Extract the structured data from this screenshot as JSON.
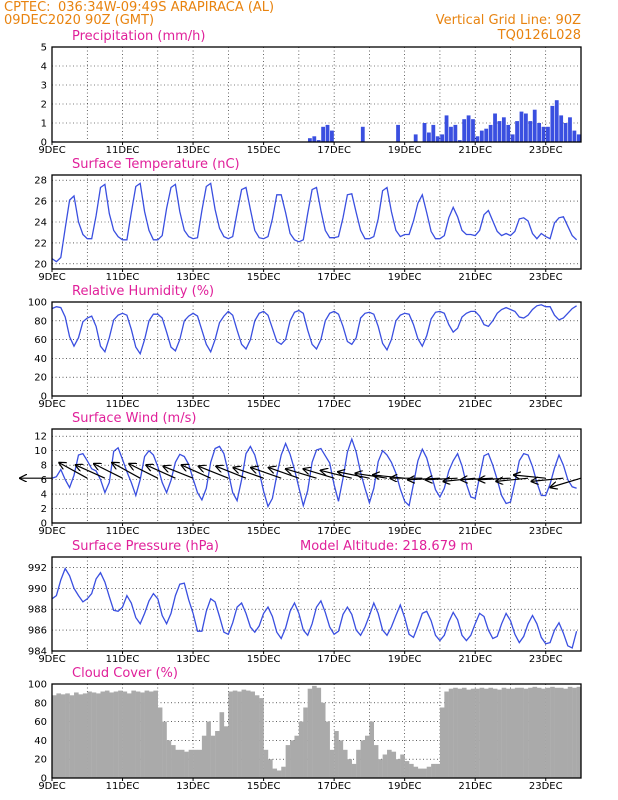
{
  "header": {
    "source": "CPTEC:",
    "location": "036:34W-09:49S  ARAPIRACA (AL)",
    "run": "09DEC2020 90Z (GMT)",
    "grid_note": "Vertical Grid Line: 90Z",
    "model": "TQ0126L028"
  },
  "colors": {
    "header": "#e8830f",
    "title": "#e0209a",
    "series": "#3a4fe0",
    "precip": "#3a4fe0",
    "cloud": "#aaaaaa",
    "wind_arrow": "#000000"
  },
  "chart_data": [
    {
      "id": "precip",
      "type": "bar",
      "title": "Precipitation  (mm/h)",
      "ylim": [
        0,
        5
      ],
      "yticks": [
        0,
        1,
        2,
        3,
        4,
        5
      ],
      "x_range": [
        "9DEC",
        "24DEC"
      ],
      "x_step_hours": 3,
      "values": [
        0.03,
        0.02,
        0.02,
        0.02,
        0.02,
        0.02,
        0.02,
        0.02,
        0.02,
        0.02,
        0.02,
        0.02,
        0.02,
        0.02,
        0.02,
        0.02,
        0.02,
        0.02,
        0.02,
        0.02,
        0.02,
        0.02,
        0.02,
        0.02,
        0.02,
        0.02,
        0.02,
        0.02,
        0.02,
        0.02,
        0.02,
        0.02,
        0.02,
        0.02,
        0.02,
        0.02,
        0.02,
        0.02,
        0.02,
        0.02,
        0.02,
        0.02,
        0.02,
        0.02,
        0.02,
        0.02,
        0.02,
        0.02,
        0.02,
        0.02,
        0.02,
        0.02,
        0.02,
        0.02,
        0.02,
        0.02,
        0.02,
        0.02,
        0.2,
        0.3,
        0.1,
        0.8,
        0.9,
        0.6,
        0.02,
        0.02,
        0.02,
        0.02,
        0.02,
        0.02,
        0.8,
        0.02,
        0.02,
        0.02,
        0.02,
        0.02,
        0.02,
        0.02,
        0.9,
        0.02,
        0.02,
        0.02,
        0.4,
        0.02,
        1.0,
        0.5,
        0.9,
        0.3,
        0.4,
        1.4,
        0.8,
        0.9,
        0.1,
        1.2,
        1.4,
        1.2,
        0.3,
        0.6,
        0.7,
        0.9,
        1.5,
        1.1,
        1.3,
        0.9,
        0.4,
        1.1,
        1.6,
        1.5,
        1.1,
        1.7,
        1.0,
        0.8,
        0.8,
        1.9,
        2.2,
        1.4,
        1.0,
        1.3,
        0.6,
        0.4
      ],
      "xticks": [
        "9DEC",
        "11DEC",
        "13DEC",
        "15DEC",
        "17DEC",
        "19DEC",
        "21DEC",
        "23DEC"
      ]
    },
    {
      "id": "temp",
      "type": "line",
      "title": "Surface Temperature (nC)",
      "ylim": [
        19.5,
        28.5
      ],
      "yticks": [
        20,
        22,
        24,
        26,
        28
      ],
      "x_step_hours": 3,
      "values": [
        20.5,
        20.2,
        20.6,
        23.4,
        26.1,
        26.5,
        24.0,
        22.8,
        22.4,
        22.4,
        24.6,
        27.3,
        27.6,
        24.8,
        23.2,
        22.6,
        22.3,
        22.3,
        24.9,
        27.4,
        27.7,
        25.0,
        23.2,
        22.3,
        22.3,
        22.7,
        25.3,
        27.3,
        27.6,
        25.0,
        23.2,
        22.6,
        22.4,
        22.5,
        25.1,
        27.4,
        27.7,
        25.2,
        23.4,
        22.6,
        22.4,
        22.6,
        24.9,
        27.1,
        27.3,
        25.2,
        23.2,
        22.5,
        22.4,
        22.6,
        24.3,
        26.6,
        26.6,
        24.9,
        22.9,
        22.3,
        22.1,
        22.3,
        24.8,
        27.1,
        27.3,
        25.1,
        23.2,
        22.5,
        22.5,
        22.6,
        24.4,
        26.6,
        26.7,
        24.9,
        23.2,
        22.4,
        22.4,
        22.6,
        24.3,
        27.0,
        27.3,
        25.0,
        23.2,
        22.6,
        22.8,
        22.8,
        24.1,
        25.8,
        26.6,
        24.9,
        23.1,
        22.4,
        22.4,
        22.7,
        24.4,
        25.4,
        24.5,
        23.2,
        22.8,
        22.8,
        22.7,
        23.2,
        24.7,
        25.1,
        24.1,
        23.1,
        22.7,
        22.9,
        22.7,
        23.1,
        24.3,
        24.4,
        24.1,
        22.9,
        22.4,
        22.9,
        22.6,
        22.4,
        23.9,
        24.4,
        24.5,
        23.6,
        22.7,
        22.3
      ],
      "xticks": [
        "9DEC",
        "11DEC",
        "13DEC",
        "15DEC",
        "17DEC",
        "19DEC",
        "21DEC",
        "23DEC"
      ]
    },
    {
      "id": "rh",
      "type": "line",
      "title": "Relative Humidity (%)",
      "ylim": [
        0,
        100
      ],
      "yticks": [
        0,
        20,
        40,
        60,
        80,
        100
      ],
      "x_step_hours": 3,
      "values": [
        93,
        95,
        94,
        84,
        63,
        53,
        62,
        79,
        83,
        85,
        74,
        53,
        47,
        62,
        81,
        86,
        88,
        86,
        71,
        52,
        45,
        60,
        80,
        87,
        87,
        83,
        68,
        52,
        48,
        60,
        80,
        85,
        88,
        85,
        70,
        55,
        47,
        60,
        78,
        85,
        90,
        86,
        70,
        55,
        50,
        60,
        80,
        88,
        90,
        86,
        72,
        58,
        55,
        60,
        80,
        89,
        91,
        88,
        70,
        55,
        50,
        60,
        80,
        88,
        90,
        87,
        74,
        58,
        55,
        62,
        83,
        88,
        89,
        87,
        74,
        56,
        49,
        60,
        80,
        86,
        88,
        87,
        76,
        61,
        53,
        64,
        82,
        89,
        90,
        88,
        76,
        68,
        72,
        84,
        88,
        90,
        90,
        85,
        76,
        74,
        80,
        88,
        92,
        94,
        92,
        90,
        84,
        83,
        86,
        92,
        96,
        97,
        95,
        95,
        86,
        81,
        83,
        88,
        93,
        96
      ],
      "xticks": [
        "9DEC",
        "11DEC",
        "13DEC",
        "15DEC",
        "17DEC",
        "19DEC",
        "21DEC",
        "23DEC"
      ]
    },
    {
      "id": "wind",
      "type": "line",
      "title": "Surface Wind (m/s)",
      "ylim": [
        0,
        13
      ],
      "yticks": [
        0,
        2,
        4,
        6,
        8,
        10,
        12
      ],
      "x_step_hours": 3,
      "values": [
        6.2,
        6.4,
        7.4,
        6.0,
        4.9,
        6.6,
        9.4,
        9.6,
        8.6,
        7.5,
        7.2,
        6.0,
        4.2,
        5.6,
        9.9,
        10.4,
        8.8,
        7.1,
        5.6,
        3.8,
        6.0,
        9.2,
        10.0,
        9.4,
        7.8,
        5.6,
        4.2,
        5.9,
        8.4,
        9.5,
        9.2,
        8.1,
        6.1,
        4.2,
        3.2,
        4.8,
        8.4,
        10.3,
        10.6,
        9.6,
        7.0,
        4.2,
        3.1,
        6.0,
        9.6,
        10.6,
        9.4,
        7.1,
        4.4,
        2.3,
        3.4,
        6.6,
        9.4,
        11.0,
        9.5,
        7.4,
        4.9,
        2.4,
        4.5,
        8.4,
        10.1,
        10.3,
        9.3,
        8.3,
        5.3,
        3.0,
        6.2,
        9.8,
        11.6,
        9.8,
        7.0,
        4.8,
        2.8,
        4.8,
        8.5,
        10.0,
        9.4,
        8.4,
        6.9,
        4.7,
        3.0,
        2.4,
        5.4,
        8.6,
        10.2,
        9.0,
        6.8,
        4.6,
        3.6,
        4.8,
        7.2,
        8.6,
        9.6,
        7.9,
        5.4,
        3.6,
        3.4,
        6.4,
        9.3,
        9.6,
        8.0,
        6.0,
        3.8,
        2.7,
        2.9,
        5.6,
        8.6,
        9.6,
        9.4,
        7.8,
        5.6,
        3.8,
        3.8,
        5.4,
        7.6,
        9.4,
        8.0,
        6.0,
        5.0,
        4.8
      ],
      "arrows": [
        {
          "day": 9.0,
          "dx": -1,
          "dy": 0.0
        },
        {
          "day": 10.0,
          "dx": -1,
          "dy": -0.55
        },
        {
          "day": 10.5,
          "dx": -1,
          "dy": -0.45
        },
        {
          "day": 11.0,
          "dx": -1,
          "dy": -0.5
        },
        {
          "day": 11.5,
          "dx": -1,
          "dy": -0.55
        },
        {
          "day": 12.0,
          "dx": -1,
          "dy": -0.5
        },
        {
          "day": 12.5,
          "dx": -1,
          "dy": -0.45
        },
        {
          "day": 13.0,
          "dx": -1,
          "dy": -0.4
        },
        {
          "day": 13.5,
          "dx": -1,
          "dy": -0.45
        },
        {
          "day": 14.0,
          "dx": -1,
          "dy": -0.4
        },
        {
          "day": 14.5,
          "dx": -1,
          "dy": -0.4
        },
        {
          "day": 15.0,
          "dx": -1,
          "dy": -0.35
        },
        {
          "day": 15.5,
          "dx": -1,
          "dy": -0.35
        },
        {
          "day": 16.0,
          "dx": -1,
          "dy": -0.35
        },
        {
          "day": 16.5,
          "dx": -1,
          "dy": -0.3
        },
        {
          "day": 17.0,
          "dx": -1,
          "dy": -0.3
        },
        {
          "day": 17.5,
          "dx": -1,
          "dy": -0.25
        },
        {
          "day": 18.0,
          "dx": -1,
          "dy": -0.2
        },
        {
          "day": 18.5,
          "dx": -1,
          "dy": -0.15
        },
        {
          "day": 19.0,
          "dx": -1,
          "dy": -0.1
        },
        {
          "day": 19.5,
          "dx": -1,
          "dy": 0.0
        },
        {
          "day": 20.0,
          "dx": -1,
          "dy": 0.05
        },
        {
          "day": 20.5,
          "dx": -1,
          "dy": 0.05
        },
        {
          "day": 21.0,
          "dx": -1,
          "dy": 0.1
        },
        {
          "day": 21.5,
          "dx": -1,
          "dy": 0.05
        },
        {
          "day": 22.0,
          "dx": -1,
          "dy": 0.05
        },
        {
          "day": 22.5,
          "dx": -1,
          "dy": 0.1
        },
        {
          "day": 23.0,
          "dx": -1,
          "dy": -0.1
        },
        {
          "day": 23.5,
          "dx": -1,
          "dy": 0.1
        },
        {
          "day": 24.0,
          "dx": -1,
          "dy": 0.3
        }
      ],
      "xticks": [
        "9DEC",
        "11DEC",
        "13DEC",
        "15DEC",
        "17DEC",
        "19DEC",
        "21DEC",
        "23DEC"
      ]
    },
    {
      "id": "pressure",
      "type": "line",
      "title": "Surface Pressure (hPa)",
      "annotation": "Model Altitude: 218.679  m",
      "ylim": [
        984,
        993
      ],
      "yticks": [
        984,
        986,
        988,
        990,
        992
      ],
      "x_step_hours": 3,
      "values": [
        989.0,
        989.3,
        990.8,
        991.9,
        991.2,
        990.0,
        989.3,
        988.7,
        989.0,
        989.5,
        990.9,
        991.5,
        990.6,
        989.2,
        987.9,
        987.8,
        988.2,
        989.3,
        988.6,
        987.2,
        986.6,
        987.6,
        988.8,
        989.5,
        989.0,
        987.4,
        986.6,
        987.6,
        989.3,
        990.4,
        990.5,
        988.9,
        987.6,
        985.9,
        985.9,
        987.8,
        989.0,
        988.7,
        987.3,
        985.8,
        985.6,
        986.7,
        988.2,
        988.6,
        987.6,
        986.3,
        985.8,
        986.4,
        987.6,
        988.2,
        987.3,
        985.8,
        985.2,
        986.2,
        987.8,
        988.6,
        987.6,
        986.0,
        985.5,
        986.6,
        988.2,
        988.8,
        987.7,
        986.3,
        985.6,
        985.9,
        987.5,
        988.2,
        987.5,
        986.0,
        985.5,
        986.3,
        987.4,
        988.6,
        987.6,
        986.0,
        985.5,
        986.3,
        987.4,
        988.4,
        987.2,
        985.6,
        985.3,
        986.4,
        987.6,
        987.8,
        986.9,
        985.5,
        985.0,
        985.5,
        986.8,
        987.7,
        987.0,
        985.5,
        985.0,
        985.5,
        986.6,
        987.6,
        987.3,
        986.0,
        985.2,
        985.4,
        986.6,
        987.6,
        986.9,
        985.6,
        984.8,
        985.4,
        986.6,
        987.4,
        986.6,
        985.3,
        984.7,
        984.8,
        986.0,
        986.7,
        985.7,
        984.5,
        984.3,
        985.9
      ],
      "xticks": [
        "9DEC",
        "11DEC",
        "13DEC",
        "15DEC",
        "17DEC",
        "19DEC",
        "21DEC",
        "23DEC"
      ]
    },
    {
      "id": "cloud",
      "type": "area",
      "title": "Cloud Cover (%)",
      "ylim": [
        0,
        100
      ],
      "yticks": [
        0,
        20,
        40,
        60,
        80,
        100
      ],
      "x_step_hours": 3,
      "values": [
        88,
        90,
        89,
        90,
        88,
        91,
        89,
        90,
        92,
        91,
        90,
        92,
        93,
        91,
        92,
        93,
        92,
        90,
        93,
        92,
        91,
        93,
        92,
        93,
        75,
        60,
        40,
        35,
        30,
        30,
        28,
        30,
        30,
        30,
        45,
        60,
        45,
        50,
        70,
        55,
        92,
        93,
        92,
        94,
        93,
        92,
        88,
        85,
        30,
        20,
        10,
        8,
        12,
        35,
        40,
        45,
        60,
        75,
        95,
        98,
        96,
        80,
        60,
        30,
        50,
        40,
        30,
        20,
        15,
        30,
        40,
        45,
        60,
        35,
        20,
        25,
        30,
        28,
        20,
        25,
        18,
        15,
        12,
        10,
        10,
        12,
        15,
        15,
        75,
        92,
        95,
        96,
        95,
        96,
        94,
        95,
        95,
        96,
        95,
        96,
        95,
        94,
        96,
        95,
        95,
        96,
        96,
        95,
        96,
        97,
        96,
        95,
        96,
        97,
        96,
        96,
        95,
        97,
        96,
        97
      ],
      "xticks": [
        "9DEC",
        "11DEC",
        "13DEC",
        "15DEC",
        "17DEC",
        "19DEC",
        "21DEC",
        "23DEC"
      ]
    }
  ]
}
